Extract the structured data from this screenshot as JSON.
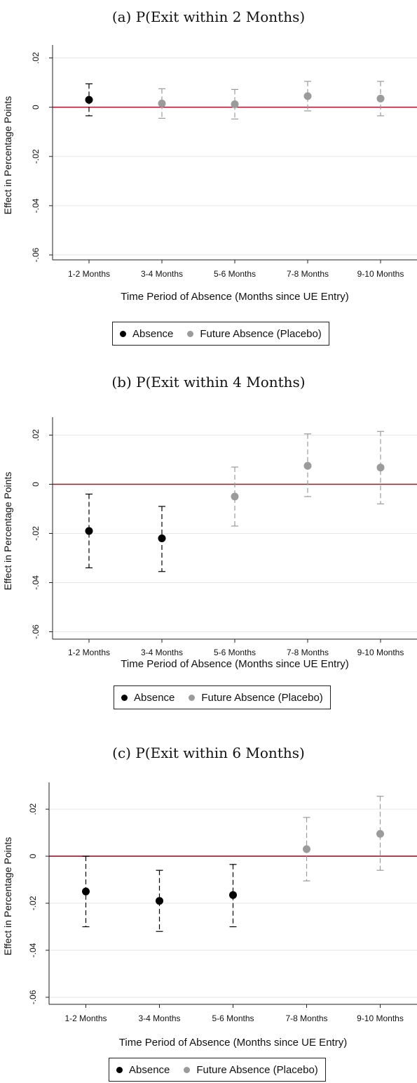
{
  "colors": {
    "absence": "#000000",
    "placebo": "#9b9b9b",
    "zero_line": "#a0132f",
    "grid": "#e6e6e6",
    "axis": "#222222"
  },
  "chart_data": [
    {
      "type": "scatter",
      "title": "(a) P(Exit within 2 Months)",
      "xlabel": "Time Period of Absence (Months since UE Entry)",
      "ylabel": "Effect in Percentage Points",
      "categories": [
        "1-2 Months",
        "3-4 Months",
        "5-6 Months",
        "7-8 Months",
        "9-10 Months"
      ],
      "yticks": [
        ".02",
        "0",
        "-.02",
        "-.04",
        "-.06"
      ],
      "ylim": [
        -0.062,
        0.023
      ],
      "grid": true,
      "legend": {
        "position": "bottom",
        "entries": [
          "Absence",
          "Future Absence (Placebo)"
        ]
      },
      "points": [
        {
          "category": "1-2 Months",
          "series": "Absence",
          "estimate": 0.003,
          "ci_low": -0.0035,
          "ci_high": 0.0095
        },
        {
          "category": "3-4 Months",
          "series": "Future Absence (Placebo)",
          "estimate": 0.0015,
          "ci_low": -0.0045,
          "ci_high": 0.0075
        },
        {
          "category": "5-6 Months",
          "series": "Future Absence (Placebo)",
          "estimate": 0.0012,
          "ci_low": -0.0048,
          "ci_high": 0.0072
        },
        {
          "category": "7-8 Months",
          "series": "Future Absence (Placebo)",
          "estimate": 0.0045,
          "ci_low": -0.0015,
          "ci_high": 0.0105
        },
        {
          "category": "9-10 Months",
          "series": "Future Absence (Placebo)",
          "estimate": 0.0035,
          "ci_low": -0.0035,
          "ci_high": 0.0105
        }
      ]
    },
    {
      "type": "scatter",
      "title": "(b) P(Exit within 4 Months)",
      "xlabel": "Time Period of Absence (Months since UE Entry)",
      "ylabel": "Effect in Percentage Points",
      "categories": [
        "1-2 Months",
        "3-4 Months",
        "5-6 Months",
        "7-8 Months",
        "9-10 Months"
      ],
      "yticks": [
        ".02",
        "0",
        "-.02",
        "-.04",
        "-.06"
      ],
      "ylim": [
        -0.063,
        0.025
      ],
      "grid": true,
      "legend": {
        "position": "bottom",
        "entries": [
          "Absence",
          "Future Absence (Placebo)"
        ]
      },
      "points": [
        {
          "category": "1-2 Months",
          "series": "Absence",
          "estimate": -0.019,
          "ci_low": -0.034,
          "ci_high": -0.004
        },
        {
          "category": "3-4 Months",
          "series": "Absence",
          "estimate": -0.022,
          "ci_low": -0.0355,
          "ci_high": -0.009
        },
        {
          "category": "5-6 Months",
          "series": "Future Absence (Placebo)",
          "estimate": -0.005,
          "ci_low": -0.017,
          "ci_high": 0.007
        },
        {
          "category": "7-8 Months",
          "series": "Future Absence (Placebo)",
          "estimate": 0.0075,
          "ci_low": -0.005,
          "ci_high": 0.0205
        },
        {
          "category": "9-10 Months",
          "series": "Future Absence (Placebo)",
          "estimate": 0.0068,
          "ci_low": -0.008,
          "ci_high": 0.0215
        }
      ]
    },
    {
      "type": "scatter",
      "title": "(c) P(Exit within 6 Months)",
      "xlabel": "Time Period of Absence (Months since UE Entry)",
      "ylabel": "Effect in Percentage Points",
      "categories": [
        "1-2 Months",
        "3-4 Months",
        "5-6 Months",
        "7-8 Months",
        "9-10 Months"
      ],
      "yticks": [
        ".02",
        "0",
        "-.02",
        "-.04",
        "-.06"
      ],
      "ylim": [
        -0.063,
        0.029
      ],
      "grid": true,
      "legend": {
        "position": "bottom",
        "entries": [
          "Absence",
          "Future Absence (Placebo)"
        ]
      },
      "points": [
        {
          "category": "1-2 Months",
          "series": "Absence",
          "estimate": -0.015,
          "ci_low": -0.03,
          "ci_high": 0.0
        },
        {
          "category": "3-4 Months",
          "series": "Absence",
          "estimate": -0.019,
          "ci_low": -0.032,
          "ci_high": -0.006
        },
        {
          "category": "5-6 Months",
          "series": "Absence",
          "estimate": -0.0165,
          "ci_low": -0.03,
          "ci_high": -0.0035
        },
        {
          "category": "7-8 Months",
          "series": "Future Absence (Placebo)",
          "estimate": 0.003,
          "ci_low": -0.0105,
          "ci_high": 0.0165
        },
        {
          "category": "9-10 Months",
          "series": "Future Absence (Placebo)",
          "estimate": 0.0095,
          "ci_low": -0.006,
          "ci_high": 0.0255
        }
      ]
    }
  ]
}
